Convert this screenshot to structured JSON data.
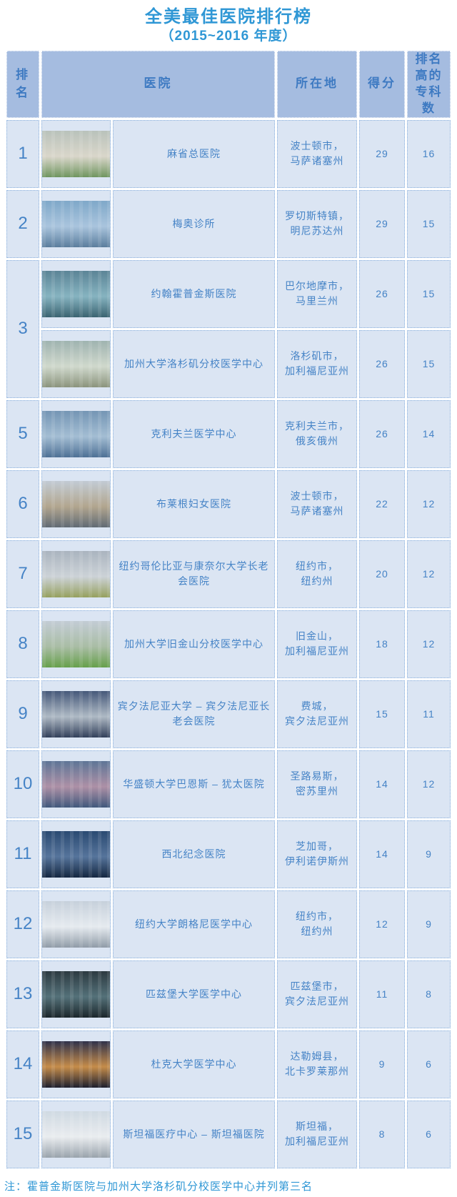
{
  "title": "全美最佳医院排行榜",
  "subtitle": "（2015~2016 年度）",
  "note": "注：霍普金斯医院与加州大学洛杉矶分校医学中心并列第三名",
  "colors": {
    "title_text": "#2f97d5",
    "header_bg": "#a5bce0",
    "header_text": "#3e7ac2",
    "cell_bg": "#dbe5f3",
    "cell_text": "#4583c6",
    "cell_border": "#88afdd"
  },
  "table": {
    "columns": [
      "排名",
      "医院",
      "所在地",
      "得分",
      "排名高的专科数"
    ],
    "rows": [
      {
        "rank": "1",
        "rank_span": 1,
        "hospital": "麻省总医院",
        "photo_alt": "massachusetts-general-hospital-photo",
        "photo_colors": [
          "#b9c2bb",
          "#d9d6ca",
          "#6f955f"
        ],
        "location_line1": "波士顿市，",
        "location_line2": "马萨诸塞州",
        "score": "29",
        "specialties": "16"
      },
      {
        "rank": "2",
        "rank_span": 1,
        "hospital": "梅奥诊所",
        "photo_alt": "mayo-clinic-photo",
        "photo_colors": [
          "#7fa8c9",
          "#a9c4dd",
          "#5a7d9d"
        ],
        "location_line1": "罗切斯特镇，",
        "location_line2": "明尼苏达州",
        "score": "29",
        "specialties": "15"
      },
      {
        "rank": "3",
        "rank_span": 2,
        "hospital": "约翰霍普金斯医院",
        "photo_alt": "johns-hopkins-hospital-photo",
        "photo_colors": [
          "#5b8496",
          "#86b3c0",
          "#3a6371"
        ],
        "location_line1": "巴尔地摩市，",
        "location_line2": "马里兰州",
        "score": "26",
        "specialties": "15"
      },
      {
        "rank": null,
        "rank_span": 0,
        "hospital": "加州大学洛杉矶分校医学中心",
        "photo_alt": "ucla-medical-center-photo",
        "photo_colors": [
          "#9fb3b0",
          "#cfd8cc",
          "#8a937c"
        ],
        "location_line1": "洛杉矶市，",
        "location_line2": "加利福尼亚州",
        "score": "26",
        "specialties": "15"
      },
      {
        "rank": "5",
        "rank_span": 1,
        "hospital": "克利夫兰医学中心",
        "photo_alt": "cleveland-clinic-photo",
        "photo_colors": [
          "#7495b4",
          "#a3bdd3",
          "#4d7095"
        ],
        "location_line1": "克利夫兰市，",
        "location_line2": "俄亥俄州",
        "score": "26",
        "specialties": "14"
      },
      {
        "rank": "6",
        "rank_span": 1,
        "hospital": "布莱根妇女医院",
        "photo_alt": "brigham-and-womens-hospital-photo",
        "photo_colors": [
          "#c2cbd4",
          "#b2a68f",
          "#606a74"
        ],
        "location_line1": "波士顿市，",
        "location_line2": "马萨诸塞州",
        "score": "22",
        "specialties": "12"
      },
      {
        "rank": "7",
        "rank_span": 1,
        "hospital": "纽约哥伦比亚与康奈尔大学长老会医院",
        "photo_alt": "new-york-presbyterian-hospital-photo",
        "photo_colors": [
          "#aab4bf",
          "#ccd2d7",
          "#95a05e"
        ],
        "location_line1": "纽约市，",
        "location_line2": "纽约州",
        "score": "20",
        "specialties": "12"
      },
      {
        "rank": "8",
        "rank_span": 1,
        "hospital": "加州大学旧金山分校医学中心",
        "photo_alt": "ucsf-medical-center-photo",
        "photo_colors": [
          "#c3ccd5",
          "#a9bda5",
          "#66a04b"
        ],
        "location_line1": "旧金山，",
        "location_line2": "加利福尼亚州",
        "score": "18",
        "specialties": "12"
      },
      {
        "rank": "9",
        "rank_span": 1,
        "hospital": "宾夕法尼亚大学 – 宾夕法尼亚长老会医院",
        "photo_alt": "penn-presbyterian-medical-center-photo",
        "photo_colors": [
          "#46597a",
          "#aeb9c4",
          "#313f5a"
        ],
        "location_line1": "费城，",
        "location_line2": "宾夕法尼亚州",
        "score": "15",
        "specialties": "11"
      },
      {
        "rank": "10",
        "rank_span": 1,
        "hospital": "华盛顿大学巴恩斯 – 犹太医院",
        "photo_alt": "barnes-jewish-hospital-photo",
        "photo_colors": [
          "#5e7596",
          "#ad90a6",
          "#40587c"
        ],
        "location_line1": "圣路易斯，",
        "location_line2": "密苏里州",
        "score": "14",
        "specialties": "12"
      },
      {
        "rank": "11",
        "rank_span": 1,
        "hospital": "西北纪念医院",
        "photo_alt": "northwestern-memorial-hospital-photo",
        "photo_colors": [
          "#2a4a72",
          "#56749b",
          "#142741"
        ],
        "location_line1": "芝加哥，",
        "location_line2": "伊利诺伊斯州",
        "score": "14",
        "specialties": "9"
      },
      {
        "rank": "12",
        "rank_span": 1,
        "hospital": "纽约大学朗格尼医学中心",
        "photo_alt": "nyu-langone-medical-center-photo",
        "photo_colors": [
          "#c6d0db",
          "#e5eaef",
          "#8f9ba7"
        ],
        "location_line1": "纽约市，",
        "location_line2": "纽约州",
        "score": "12",
        "specialties": "9"
      },
      {
        "rank": "13",
        "rank_span": 1,
        "hospital": "匹兹堡大学医学中心",
        "photo_alt": "upmc-photo",
        "photo_colors": [
          "#2c3a41",
          "#547179",
          "#1b262b"
        ],
        "location_line1": "匹兹堡市，",
        "location_line2": "宾夕法尼亚州",
        "score": "11",
        "specialties": "8"
      },
      {
        "rank": "14",
        "rank_span": 1,
        "hospital": "杜克大学医学中心",
        "photo_alt": "duke-university-medical-center-photo",
        "photo_colors": [
          "#30324a",
          "#c58c4a",
          "#1d1f2e"
        ],
        "location_line1": "达勒姆县，",
        "location_line2": "北卡罗莱那州",
        "score": "9",
        "specialties": "6"
      },
      {
        "rank": "15",
        "rank_span": 1,
        "hospital": "斯坦福医疗中心 – 斯坦福医院",
        "photo_alt": "stanford-hospital-photo",
        "photo_colors": [
          "#cfd9e2",
          "#e9ecef",
          "#98a2ab"
        ],
        "location_line1": "斯坦福，",
        "location_line2": "加利福尼亚州",
        "score": "8",
        "specialties": "6"
      }
    ]
  }
}
